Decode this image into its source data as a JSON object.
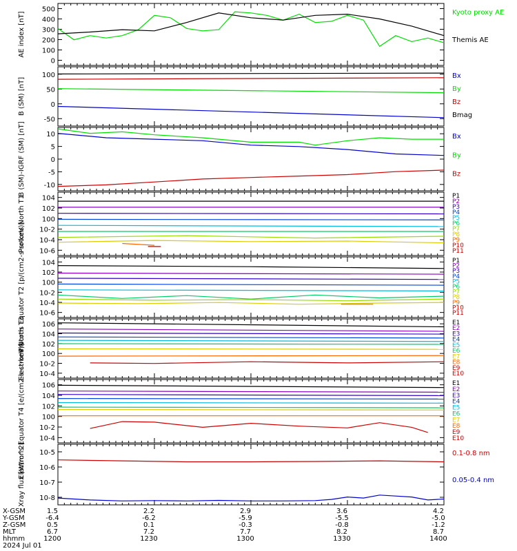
{
  "chart_data": [
    {
      "type": "line",
      "ylabel": "AE index [nT]",
      "yticks": [
        "0",
        "100",
        "200",
        "300",
        "400",
        "500"
      ],
      "ylim": [
        0,
        520
      ],
      "yscale": "linear",
      "series": [
        {
          "name": "Kyoto proxy AE",
          "color": "#00dd00",
          "x": [
            0,
            5,
            10,
            15,
            20,
            25,
            30,
            35,
            40,
            45,
            50,
            55,
            60,
            65,
            70,
            75,
            80,
            85,
            90,
            95,
            100,
            105,
            110,
            115,
            120
          ],
          "values": [
            310,
            215,
            250,
            230,
            250,
            300,
            420,
            400,
            310,
            290,
            300,
            450,
            440,
            420,
            380,
            430,
            360,
            370,
            420,
            380,
            160,
            250,
            200,
            230,
            190
          ]
        },
        {
          "name": "Themis AE",
          "color": "#000000",
          "x": [
            0,
            10,
            20,
            30,
            40,
            50,
            60,
            70,
            80,
            90,
            100,
            110,
            120
          ],
          "values": [
            265,
            280,
            300,
            290,
            360,
            440,
            400,
            380,
            420,
            430,
            390,
            330,
            250
          ]
        }
      ]
    },
    {
      "type": "line",
      "ylabel": "B (SM) [nT]",
      "yticks": [
        "-50",
        "0",
        "50",
        "100"
      ],
      "ylim": [
        -65,
        125
      ],
      "yscale": "linear",
      "series": [
        {
          "name": "Bx",
          "color": "#0000cc",
          "x": [
            0,
            120
          ],
          "values": [
            -2,
            -38
          ]
        },
        {
          "name": "By",
          "color": "#00dd00",
          "x": [
            0,
            120
          ],
          "values": [
            55,
            42
          ]
        },
        {
          "name": "Bz",
          "color": "#cc0000",
          "x": [
            0,
            120
          ],
          "values": [
            85,
            90
          ]
        },
        {
          "name": "Bmag",
          "color": "#000000",
          "x": [
            0,
            120
          ],
          "values": [
            102,
            105
          ]
        }
      ]
    },
    {
      "type": "line",
      "ylabel": "B (SM)-IGRF (SM) [nT]",
      "yticks": [
        "-10",
        "-5",
        "0",
        "5",
        "10"
      ],
      "ylim": [
        -11,
        10.5
      ],
      "yscale": "linear",
      "series": [
        {
          "name": "Bx",
          "color": "#0000cc",
          "x": [
            0,
            15,
            30,
            45,
            60,
            75,
            90,
            105,
            120
          ],
          "values": [
            8.5,
            7,
            6.5,
            6,
            4.5,
            4,
            3,
            1.5,
            1
          ]
        },
        {
          "name": "By",
          "color": "#00dd00",
          "x": [
            0,
            10,
            20,
            30,
            45,
            60,
            75,
            80,
            90,
            100,
            110,
            120
          ],
          "values": [
            10,
            8.5,
            9,
            8,
            7,
            5.5,
            5.5,
            4.5,
            6,
            7,
            6.5,
            6.5
          ]
        },
        {
          "name": "Bz",
          "color": "#cc0000",
          "x": [
            0,
            15,
            30,
            45,
            60,
            75,
            90,
            105,
            120
          ],
          "values": [
            -9.5,
            -9,
            -8,
            -7,
            -6.5,
            -6,
            -5.5,
            -4.5,
            -4
          ]
        }
      ]
    },
    {
      "type": "line",
      "ylabel": "Protons North T1",
      "yticks": [
        "10-6",
        "10-4",
        "10-2",
        "100",
        "102",
        "104"
      ],
      "ylim": [
        -6.5,
        4
      ],
      "yscale": "log",
      "legend": [
        "P1",
        "P2",
        "P3",
        "P4",
        "P5",
        "P6",
        "P7",
        "P8",
        "P9",
        "P10",
        "P11"
      ],
      "series": [
        {
          "name": "P1",
          "color": "#000000",
          "x": [
            0,
            120
          ],
          "values": [
            2.5,
            2.5
          ]
        },
        {
          "name": "P2",
          "color": "#8b00c0",
          "x": [
            0,
            120
          ],
          "values": [
            1.5,
            1.5
          ]
        },
        {
          "name": "P3",
          "color": "#3300cc",
          "x": [
            0,
            120
          ],
          "values": [
            0.5,
            0.4
          ]
        },
        {
          "name": "P4",
          "color": "#0044dd",
          "x": [
            0,
            120
          ],
          "values": [
            -0.5,
            -0.6
          ]
        },
        {
          "name": "P5",
          "color": "#00bbdd",
          "x": [
            0,
            120
          ],
          "values": [
            -1.5,
            -1.7
          ]
        },
        {
          "name": "P6",
          "color": "#00cc66",
          "x": [
            0,
            120
          ],
          "values": [
            -2.5,
            -2.5
          ]
        },
        {
          "name": "P7",
          "color": "#99dd00",
          "x": [
            0,
            40,
            80,
            120
          ],
          "values": [
            -3.5,
            -3.2,
            -3.6,
            -3.3
          ]
        },
        {
          "name": "P8",
          "color": "#ddcc00",
          "x": [
            0,
            30,
            60,
            90,
            120
          ],
          "values": [
            -4.3,
            -4.0,
            -4.2,
            -4.1,
            -4.4
          ]
        },
        {
          "name": "P9",
          "color": "#ff6600",
          "x": [
            20,
            30
          ],
          "values": [
            -4.5,
            -4.8
          ]
        },
        {
          "name": "P10",
          "color": "#cc0000",
          "x": [
            28,
            32
          ],
          "values": [
            -5.0,
            -5.0
          ]
        },
        {
          "name": "P11",
          "color": "#cc0000",
          "x": [],
          "values": []
        }
      ]
    },
    {
      "type": "line",
      "ylabel": "Protons Equator T2 [p/(cm2-s-sr-keV)]",
      "yticks": [
        "10-6",
        "10-4",
        "10-2",
        "100",
        "102",
        "104"
      ],
      "ylim": [
        -6.5,
        4
      ],
      "yscale": "log",
      "legend": [
        "P1",
        "P2",
        "P3",
        "P4",
        "P5",
        "P6",
        "P7",
        "P8",
        "P9",
        "P10",
        "P11"
      ],
      "series": [
        {
          "name": "P1",
          "color": "#000000",
          "x": [
            0,
            60,
            120
          ],
          "values": [
            2.5,
            2.3,
            2.0
          ]
        },
        {
          "name": "P2",
          "color": "#8b00c0",
          "x": [
            0,
            120
          ],
          "values": [
            1.2,
            1.0
          ]
        },
        {
          "name": "P3",
          "color": "#3300cc",
          "x": [
            0,
            120
          ],
          "values": [
            0.3,
            0.1
          ]
        },
        {
          "name": "P4",
          "color": "#0044dd",
          "x": [
            0,
            120
          ],
          "values": [
            -0.7,
            -0.9
          ]
        },
        {
          "name": "P5",
          "color": "#00bbdd",
          "x": [
            0,
            120
          ],
          "values": [
            -1.7,
            -1.9
          ]
        },
        {
          "name": "P6",
          "color": "#00cc66",
          "x": [
            0,
            20,
            40,
            60,
            80,
            100,
            120
          ],
          "values": [
            -2.6,
            -3.2,
            -2.7,
            -3.3,
            -2.6,
            -3.1,
            -2.8
          ]
        },
        {
          "name": "P7",
          "color": "#99dd00",
          "x": [
            0,
            30,
            60,
            90,
            120
          ],
          "values": [
            -3.3,
            -3.5,
            -3.4,
            -3.6,
            -3.3
          ]
        },
        {
          "name": "P8",
          "color": "#ddcc00",
          "x": [
            0,
            25,
            50,
            75,
            100,
            120
          ],
          "values": [
            -4.0,
            -4.1,
            -3.9,
            -4.2,
            -4.0,
            -3.9
          ]
        },
        {
          "name": "P9",
          "color": "#ff6600",
          "x": [
            88,
            98
          ],
          "values": [
            -4.2,
            -4.2
          ]
        },
        {
          "name": "P10",
          "color": "#cc0000",
          "x": [],
          "values": []
        },
        {
          "name": "P11",
          "color": "#cc0000",
          "x": [],
          "values": []
        }
      ]
    },
    {
      "type": "line",
      "ylabel": "Electrons North T3",
      "yticks": [
        "10-4",
        "10-2",
        "100",
        "102",
        "104",
        "106"
      ],
      "ylim": [
        -4.5,
        6
      ],
      "yscale": "log",
      "legend": [
        "E1",
        "E2",
        "E3",
        "E4",
        "E5",
        "E6",
        "E7",
        "E8",
        "E9",
        "E10"
      ],
      "series": [
        {
          "name": "E1",
          "color": "#000000",
          "x": [
            0,
            120
          ],
          "values": [
            5.3,
            4.6
          ]
        },
        {
          "name": "E2",
          "color": "#8b00c0",
          "x": [
            0,
            120
          ],
          "values": [
            4.2,
            3.8
          ]
        },
        {
          "name": "E3",
          "color": "#3300cc",
          "x": [
            0,
            120
          ],
          "values": [
            3.5,
            3.3
          ]
        },
        {
          "name": "E4",
          "color": "#0044dd",
          "x": [
            0,
            120
          ],
          "values": [
            2.8,
            2.6
          ]
        },
        {
          "name": "E5",
          "color": "#00bbdd",
          "x": [
            0,
            120
          ],
          "values": [
            2.2,
            2.0
          ]
        },
        {
          "name": "E6",
          "color": "#00cc66",
          "x": [
            0,
            120
          ],
          "values": [
            1.6,
            1.5
          ]
        },
        {
          "name": "E7",
          "color": "#ddcc00",
          "x": [
            0,
            120
          ],
          "values": [
            0.7,
            0.6
          ]
        },
        {
          "name": "E8",
          "color": "#ff6600",
          "x": [
            0,
            120
          ],
          "values": [
            -0.6,
            -0.5
          ]
        },
        {
          "name": "E9",
          "color": "#cc0000",
          "x": [
            10,
            30,
            60,
            90,
            120
          ],
          "values": [
            -1.8,
            -1.9,
            -1.6,
            -1.8,
            -1.6
          ]
        },
        {
          "name": "E10",
          "color": "#cc0000",
          "x": [],
          "values": []
        }
      ]
    },
    {
      "type": "line",
      "ylabel": "Electrons Equator T4 [e/(cm2-s-sr-keV)]",
      "yticks": [
        "10-4",
        "10-2",
        "100",
        "102",
        "104",
        "106"
      ],
      "ylim": [
        -5,
        6
      ],
      "yscale": "log",
      "legend": [
        "E1",
        "E2",
        "E3",
        "E4",
        "E5",
        "E6",
        "E7",
        "E8",
        "E9",
        "E10"
      ],
      "series": [
        {
          "name": "E1",
          "color": "#000000",
          "x": [
            0,
            120
          ],
          "values": [
            5.0,
            4.6
          ]
        },
        {
          "name": "E2",
          "color": "#8b00c0",
          "x": [
            0,
            120
          ],
          "values": [
            4.0,
            3.8
          ]
        },
        {
          "name": "E3",
          "color": "#3300cc",
          "x": [
            0,
            120
          ],
          "values": [
            3.4,
            3.2
          ]
        },
        {
          "name": "E4",
          "color": "#0044dd",
          "x": [
            0,
            120
          ],
          "values": [
            2.7,
            2.6
          ]
        },
        {
          "name": "E5",
          "color": "#00bbdd",
          "x": [
            0,
            120
          ],
          "values": [
            2.0,
            1.9
          ]
        },
        {
          "name": "E6",
          "color": "#00cc66",
          "x": [
            0,
            120
          ],
          "values": [
            1.2,
            1.1
          ]
        },
        {
          "name": "E7",
          "color": "#ddcc00",
          "x": [
            0,
            120
          ],
          "values": [
            0.8,
            0.7
          ]
        },
        {
          "name": "E8",
          "color": "#ff6600",
          "x": [
            0,
            120
          ],
          "values": [
            -0.3,
            -0.3
          ]
        },
        {
          "name": "E9",
          "color": "#cc0000",
          "x": [
            10,
            20,
            30,
            45,
            60,
            75,
            90,
            100,
            110,
            115
          ],
          "values": [
            -2.5,
            -1.3,
            -1.4,
            -2.3,
            -1.6,
            -2.1,
            -2.4,
            -1.5,
            -2.3,
            -3.2
          ]
        },
        {
          "name": "E10",
          "color": "#cc0000",
          "x": [],
          "values": []
        }
      ]
    },
    {
      "type": "line",
      "ylabel": "Xray flux [W/m^2]",
      "yticks": [
        "10-8",
        "10-7",
        "10-6",
        "10-5"
      ],
      "ylim": [
        -8.1,
        -5
      ],
      "yscale": "log",
      "series": [
        {
          "name": "0.1-0.8 nm",
          "color": "#cc0000",
          "x": [
            0,
            20,
            40,
            60,
            80,
            100,
            120
          ],
          "values": [
            -5.8,
            -5.85,
            -5.9,
            -5.9,
            -5.88,
            -5.85,
            -5.9
          ]
        },
        {
          "name": "0.05-0.4 nm",
          "color": "#0000cc",
          "x": [
            0,
            10,
            20,
            30,
            40,
            50,
            60,
            70,
            80,
            85,
            90,
            95,
            100,
            105,
            110,
            115,
            120
          ],
          "values": [
            -7.75,
            -7.85,
            -7.9,
            -7.88,
            -7.9,
            -7.87,
            -7.9,
            -7.9,
            -7.88,
            -7.82,
            -7.7,
            -7.75,
            -7.6,
            -7.65,
            -7.7,
            -7.85,
            -7.8
          ]
        }
      ]
    }
  ],
  "x_axis": {
    "labels": [
      "X-GSM",
      "Y-GSM",
      "Z-GSM",
      "MLT",
      "hhmm"
    ],
    "ticks": [
      [
        "1.5",
        "-6.4",
        "0.5",
        "6.7",
        "1200"
      ],
      [
        "2.2",
        "-6.2",
        "0.1",
        "7.2",
        "1230"
      ],
      [
        "2.9",
        "-5.9",
        "-0.3",
        "7.7",
        "1300"
      ],
      [
        "3.6",
        "-5.5",
        "-0.8",
        "8.2",
        "1330"
      ],
      [
        "4.2",
        "-5.0",
        "-1.2",
        "8.7",
        "1400"
      ]
    ],
    "date": "2024 Jul 01"
  }
}
